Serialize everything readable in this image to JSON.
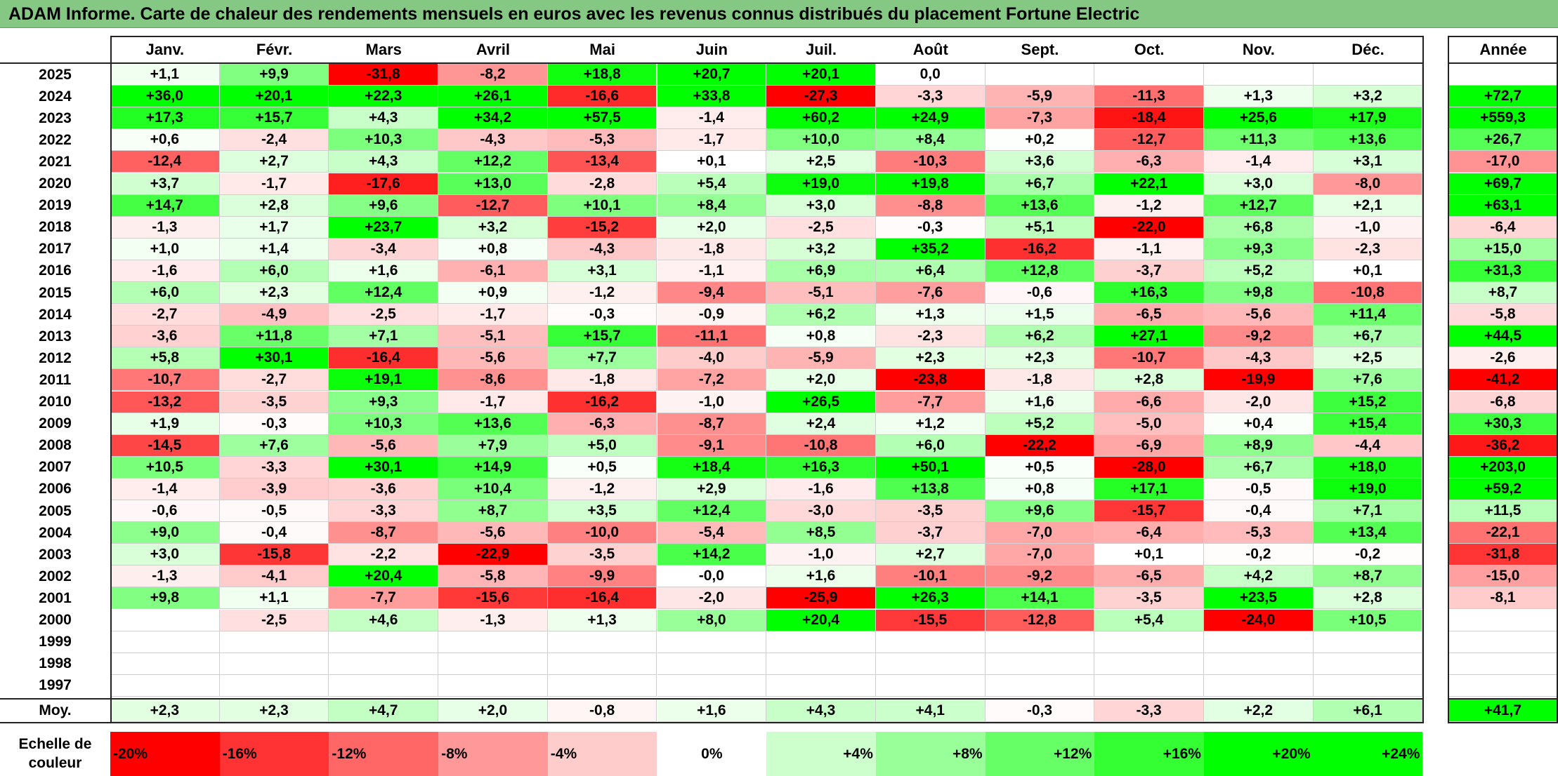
{
  "title": "ADAM Informe. Carte de chaleur des rendements mensuels en euros avec les revenus connus distribués du placement Fortune Electric",
  "chart_data": {
    "type": "heatmap",
    "title": "ADAM Informe. Carte de chaleur des rendements mensuels en euros avec les revenus connus distribués du placement Fortune Electric",
    "columns": [
      "Janv.",
      "Févr.",
      "Mars",
      "Avril",
      "Mai",
      "Juin",
      "Juil.",
      "Août",
      "Sept.",
      "Oct.",
      "Nov.",
      "Déc."
    ],
    "year_column_label": "Année",
    "rows": [
      {
        "year": "2025",
        "values": [
          "+1,1",
          "+9,9",
          "-31,8",
          "-8,2",
          "+18,8",
          "+20,7",
          "+20,1",
          "0,0",
          "",
          "",
          "",
          ""
        ],
        "annual": ""
      },
      {
        "year": "2024",
        "values": [
          "+36,0",
          "+20,1",
          "+22,3",
          "+26,1",
          "-16,6",
          "+33,8",
          "-27,3",
          "-3,3",
          "-5,9",
          "-11,3",
          "+1,3",
          "+3,2"
        ],
        "annual": "+72,7"
      },
      {
        "year": "2023",
        "values": [
          "+17,3",
          "+15,7",
          "+4,3",
          "+34,2",
          "+57,5",
          "-1,4",
          "+60,2",
          "+24,9",
          "-7,3",
          "-18,4",
          "+25,6",
          "+17,9"
        ],
        "annual": "+559,3"
      },
      {
        "year": "2022",
        "values": [
          "+0,6",
          "-2,4",
          "+10,3",
          "-4,3",
          "-5,3",
          "-1,7",
          "+10,0",
          "+8,4",
          "+0,2",
          "-12,7",
          "+11,3",
          "+13,6"
        ],
        "annual": "+26,7"
      },
      {
        "year": "2021",
        "values": [
          "-12,4",
          "+2,7",
          "+4,3",
          "+12,2",
          "-13,4",
          "+0,1",
          "+2,5",
          "-10,3",
          "+3,6",
          "-6,3",
          "-1,4",
          "+3,1"
        ],
        "annual": "-17,0"
      },
      {
        "year": "2020",
        "values": [
          "+3,7",
          "-1,7",
          "-17,6",
          "+13,0",
          "-2,8",
          "+5,4",
          "+19,0",
          "+19,8",
          "+6,7",
          "+22,1",
          "+3,0",
          "-8,0"
        ],
        "annual": "+69,7"
      },
      {
        "year": "2019",
        "values": [
          "+14,7",
          "+2,8",
          "+9,6",
          "-12,7",
          "+10,1",
          "+8,4",
          "+3,0",
          "-8,8",
          "+13,6",
          "-1,2",
          "+12,7",
          "+2,1"
        ],
        "annual": "+63,1"
      },
      {
        "year": "2018",
        "values": [
          "-1,3",
          "+1,7",
          "+23,7",
          "+3,2",
          "-15,2",
          "+2,0",
          "-2,5",
          "-0,3",
          "+5,1",
          "-22,0",
          "+6,8",
          "-1,0"
        ],
        "annual": "-6,4"
      },
      {
        "year": "2017",
        "values": [
          "+1,0",
          "+1,4",
          "-3,4",
          "+0,8",
          "-4,3",
          "-1,8",
          "+3,2",
          "+35,2",
          "-16,2",
          "-1,1",
          "+9,3",
          "-2,3"
        ],
        "annual": "+15,0"
      },
      {
        "year": "2016",
        "values": [
          "-1,6",
          "+6,0",
          "+1,6",
          "-6,1",
          "+3,1",
          "-1,1",
          "+6,9",
          "+6,4",
          "+12,8",
          "-3,7",
          "+5,2",
          "+0,1"
        ],
        "annual": "+31,3"
      },
      {
        "year": "2015",
        "values": [
          "+6,0",
          "+2,3",
          "+12,4",
          "+0,9",
          "-1,2",
          "-9,4",
          "-5,1",
          "-7,6",
          "-0,6",
          "+16,3",
          "+9,8",
          "-10,8"
        ],
        "annual": "+8,7"
      },
      {
        "year": "2014",
        "values": [
          "-2,7",
          "-4,9",
          "-2,5",
          "-1,7",
          "-0,3",
          "-0,9",
          "+6,2",
          "+1,3",
          "+1,5",
          "-6,5",
          "-5,6",
          "+11,4"
        ],
        "annual": "-5,8"
      },
      {
        "year": "2013",
        "values": [
          "-3,6",
          "+11,8",
          "+7,1",
          "-5,1",
          "+15,7",
          "-11,1",
          "+0,8",
          "-2,3",
          "+6,2",
          "+27,1",
          "-9,2",
          "+6,7"
        ],
        "annual": "+44,5"
      },
      {
        "year": "2012",
        "values": [
          "+5,8",
          "+30,1",
          "-16,4",
          "-5,6",
          "+7,7",
          "-4,0",
          "-5,9",
          "+2,3",
          "+2,3",
          "-10,7",
          "-4,3",
          "+2,5"
        ],
        "annual": "-2,6"
      },
      {
        "year": "2011",
        "values": [
          "-10,7",
          "-2,7",
          "+19,1",
          "-8,6",
          "-1,8",
          "-7,2",
          "+2,0",
          "-23,8",
          "-1,8",
          "+2,8",
          "-19,9",
          "+7,6"
        ],
        "annual": "-41,2"
      },
      {
        "year": "2010",
        "values": [
          "-13,2",
          "-3,5",
          "+9,3",
          "-1,7",
          "-16,2",
          "-1,0",
          "+26,5",
          "-7,7",
          "+1,6",
          "-6,6",
          "-2,0",
          "+15,2"
        ],
        "annual": "-6,8"
      },
      {
        "year": "2009",
        "values": [
          "+1,9",
          "-0,3",
          "+10,3",
          "+13,6",
          "-6,3",
          "-8,7",
          "+2,4",
          "+1,2",
          "+5,2",
          "-5,0",
          "+0,4",
          "+15,4"
        ],
        "annual": "+30,3"
      },
      {
        "year": "2008",
        "values": [
          "-14,5",
          "+7,6",
          "-5,6",
          "+7,9",
          "+5,0",
          "-9,1",
          "-10,8",
          "+6,0",
          "-22,2",
          "-6,9",
          "+8,9",
          "-4,4"
        ],
        "annual": "-36,2"
      },
      {
        "year": "2007",
        "values": [
          "+10,5",
          "-3,3",
          "+30,1",
          "+14,9",
          "+0,5",
          "+18,4",
          "+16,3",
          "+50,1",
          "+0,5",
          "-28,0",
          "+6,7",
          "+18,0"
        ],
        "annual": "+203,0"
      },
      {
        "year": "2006",
        "values": [
          "-1,4",
          "-3,9",
          "-3,6",
          "+10,4",
          "-1,2",
          "+2,9",
          "-1,6",
          "+13,8",
          "+0,8",
          "+17,1",
          "-0,5",
          "+19,0"
        ],
        "annual": "+59,2"
      },
      {
        "year": "2005",
        "values": [
          "-0,6",
          "-0,5",
          "-3,3",
          "+8,7",
          "+3,5",
          "+12,4",
          "-3,0",
          "-3,5",
          "+9,6",
          "-15,7",
          "-0,4",
          "+7,1"
        ],
        "annual": "+11,5"
      },
      {
        "year": "2004",
        "values": [
          "+9,0",
          "-0,4",
          "-8,7",
          "-5,6",
          "-10,0",
          "-5,4",
          "+8,5",
          "-3,7",
          "-7,0",
          "-6,4",
          "-5,3",
          "+13,4"
        ],
        "annual": "-22,1"
      },
      {
        "year": "2003",
        "values": [
          "+3,0",
          "-15,8",
          "-2,2",
          "-22,9",
          "-3,5",
          "+14,2",
          "-1,0",
          "+2,7",
          "-7,0",
          "+0,1",
          "-0,2",
          "-0,2"
        ],
        "annual": "-31,8"
      },
      {
        "year": "2002",
        "values": [
          "-1,3",
          "-4,1",
          "+20,4",
          "-5,8",
          "-9,9",
          "-0,0",
          "+1,6",
          "-10,1",
          "-9,2",
          "-6,5",
          "+4,2",
          "+8,7"
        ],
        "annual": "-15,0"
      },
      {
        "year": "2001",
        "values": [
          "+9,8",
          "+1,1",
          "-7,7",
          "-15,6",
          "-16,4",
          "-2,0",
          "-25,9",
          "+26,3",
          "+14,1",
          "-3,5",
          "+23,5",
          "+2,8"
        ],
        "annual": "-8,1"
      },
      {
        "year": "2000",
        "values": [
          "",
          "-2,5",
          "+4,6",
          "-1,3",
          "+1,3",
          "+8,0",
          "+20,4",
          "-15,5",
          "-12,8",
          "+5,4",
          "-24,0",
          "+10,5"
        ],
        "annual": ""
      },
      {
        "year": "1999",
        "values": [
          "",
          "",
          "",
          "",
          "",
          "",
          "",
          "",
          "",
          "",
          "",
          ""
        ],
        "annual": ""
      },
      {
        "year": "1998",
        "values": [
          "",
          "",
          "",
          "",
          "",
          "",
          "",
          "",
          "",
          "",
          "",
          ""
        ],
        "annual": ""
      },
      {
        "year": "1997",
        "values": [
          "",
          "",
          "",
          "",
          "",
          "",
          "",
          "",
          "",
          "",
          "",
          ""
        ],
        "annual": ""
      }
    ],
    "average_row": {
      "label": "Moy.",
      "values": [
        "+2,3",
        "+2,3",
        "+4,7",
        "+2,0",
        "-0,8",
        "+1,6",
        "+4,3",
        "+4,1",
        "-0,3",
        "-3,3",
        "+2,2",
        "+6,1"
      ],
      "annual": "+41,7"
    },
    "color_scale": {
      "label": "Echelle de couleur",
      "steps": [
        "-20%",
        "-16%",
        "-12%",
        "-8%",
        "-4%",
        "0%",
        "+4%",
        "+8%",
        "+12%",
        "+16%",
        "+20%",
        "+24%"
      ],
      "negative_color": "#ff0000",
      "neutral_color": "#ffffff",
      "positive_color": "#00ff00"
    }
  }
}
